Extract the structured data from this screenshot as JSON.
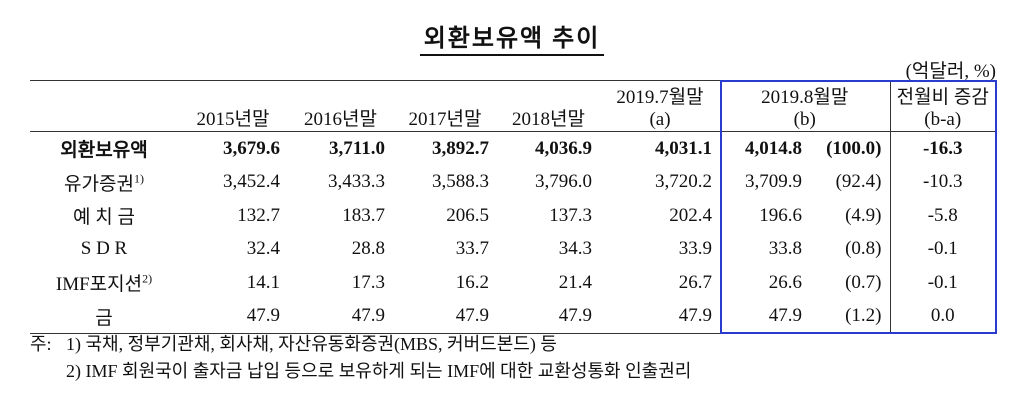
{
  "title": "외환보유액 추이",
  "unit": "(억달러, %)",
  "table": {
    "header": [
      [
        "2015년말"
      ],
      [
        "2016년말"
      ],
      [
        "2017년말"
      ],
      [
        "2018년말"
      ],
      [
        "2019.7월말",
        "(a)"
      ],
      [
        "2019.8월말",
        "(b)"
      ],
      [
        "전월비 증감",
        "(b-a)"
      ]
    ],
    "rows": [
      {
        "label": "외환보유액",
        "cells": [
          "3,679.6",
          "3,711.0",
          "3,892.7",
          "4,036.9",
          "4,031.1",
          "4,014.8",
          "(100.0)",
          "-16.3"
        ]
      },
      {
        "label": "유가증권",
        "note": "1)",
        "cells": [
          "3,452.4",
          "3,433.3",
          "3,588.3",
          "3,796.0",
          "3,720.2",
          "3,709.9",
          "(92.4)",
          "-10.3"
        ]
      },
      {
        "label": "예 치 금",
        "cells": [
          "132.7",
          "183.7",
          "206.5",
          "137.3",
          "202.4",
          "196.6",
          "(4.9)",
          "-5.8"
        ]
      },
      {
        "label": "S D R",
        "cells": [
          "32.4",
          "28.8",
          "33.7",
          "34.3",
          "33.9",
          "33.8",
          "(0.8)",
          "-0.1"
        ]
      },
      {
        "label": "IMF포지션",
        "note": "2)",
        "cells": [
          "14.1",
          "17.3",
          "16.2",
          "21.4",
          "26.7",
          "26.6",
          "(0.7)",
          "-0.1"
        ]
      },
      {
        "label": "금",
        "cells": [
          "47.9",
          "47.9",
          "47.9",
          "47.9",
          "47.9",
          "47.9",
          "(1.2)",
          "0.0"
        ]
      }
    ]
  },
  "notes": {
    "prefix": "주:",
    "items": [
      "1) 국채, 정부기관채, 회사채, 자산유동화증권(MBS, 커버드본드) 등",
      "2) IMF 회원국이 출자금 납입 등으로 보유하게 되는 IMF에 대한 교환성통화 인출권리"
    ]
  }
}
